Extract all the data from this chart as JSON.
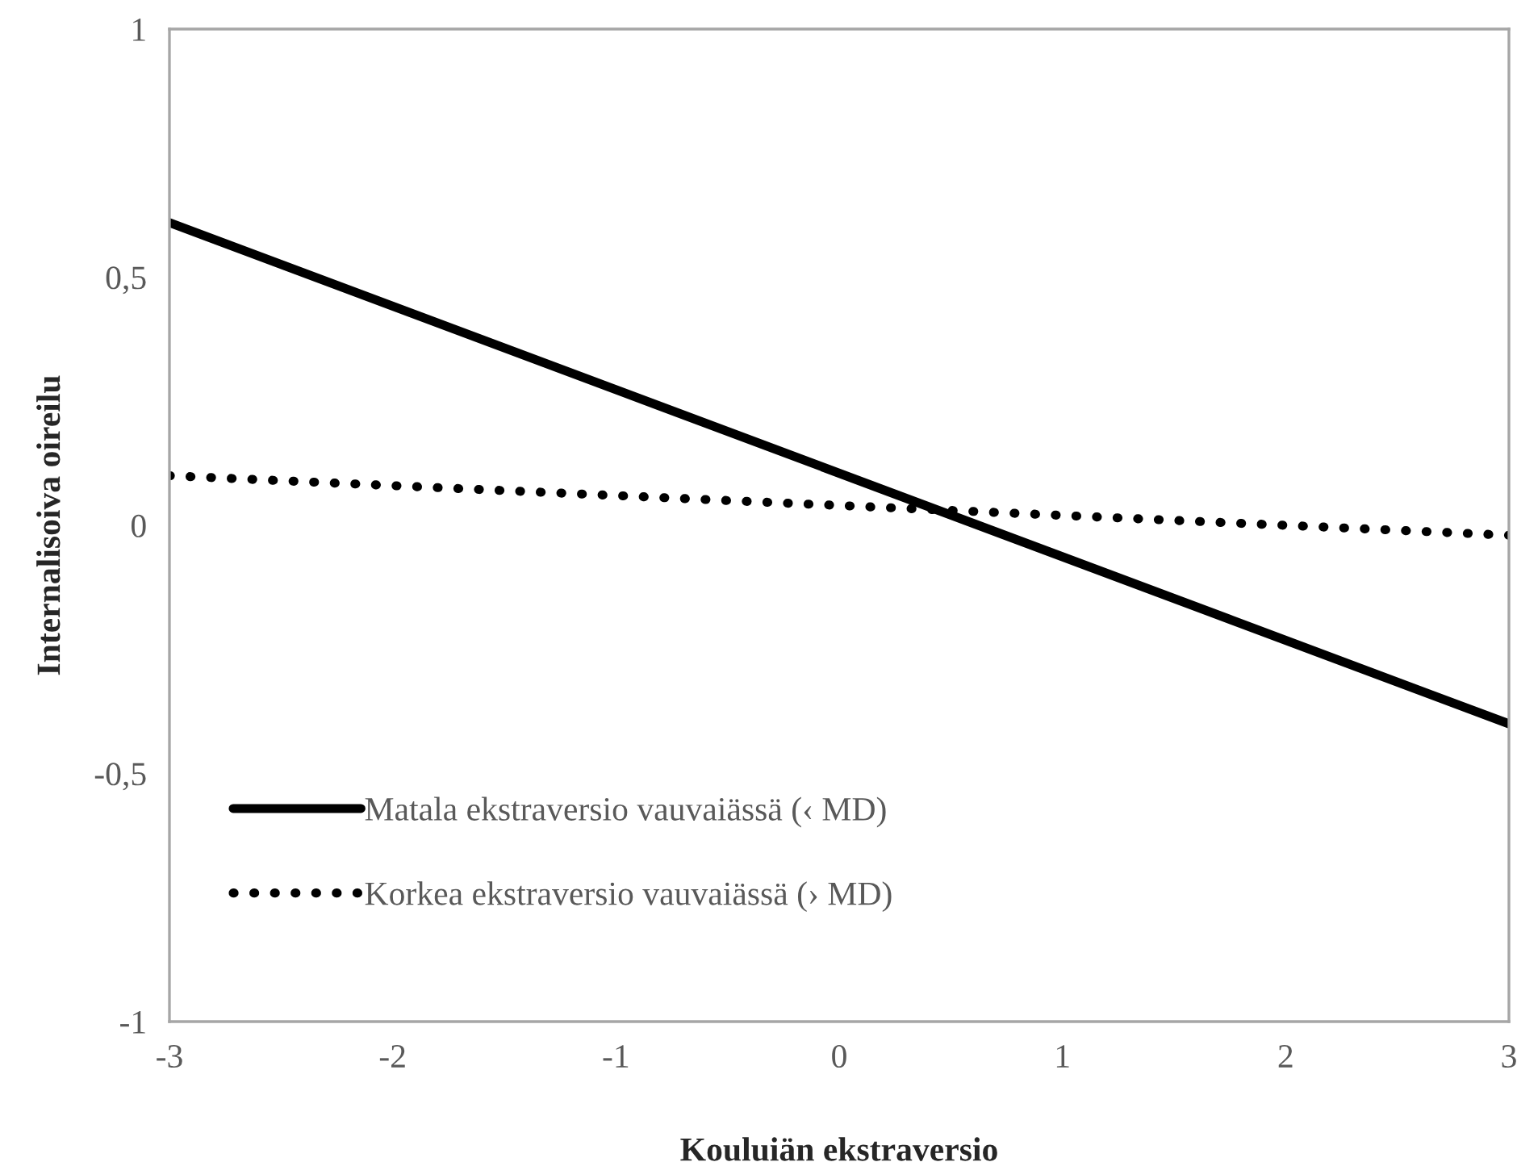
{
  "chart_data": {
    "type": "line",
    "xlabel": "Kouluiän ekstraversio",
    "ylabel": "Internalisoiva oireilu",
    "x": [
      -3,
      3
    ],
    "series": [
      {
        "name": "Matala ekstraversio vauvaiässä (‹ MD)",
        "color": "#000000",
        "values": [
          0.61,
          -0.4
        ],
        "line_style": "solid"
      },
      {
        "name": "Korkea ekstraversio vauvaiässä (› MD)",
        "color": "#000000",
        "values": [
          0.1,
          -0.02
        ],
        "line_style": "dotted"
      }
    ],
    "xlim": [
      -3,
      3
    ],
    "xticks": [
      {
        "value": -3,
        "label": "-3"
      },
      {
        "value": -2,
        "label": "-2"
      },
      {
        "value": -1,
        "label": "-1"
      },
      0,
      1,
      2,
      3
    ],
    "ylim": [
      -1,
      1
    ],
    "yticks": [
      {
        "value": -1,
        "label": "-1"
      },
      {
        "value": -0.5,
        "label": "-0,5"
      },
      0,
      {
        "value": 0.5,
        "label": "0,5"
      },
      1
    ],
    "grid": false,
    "legend": "bottom left",
    "marker": "none"
  }
}
